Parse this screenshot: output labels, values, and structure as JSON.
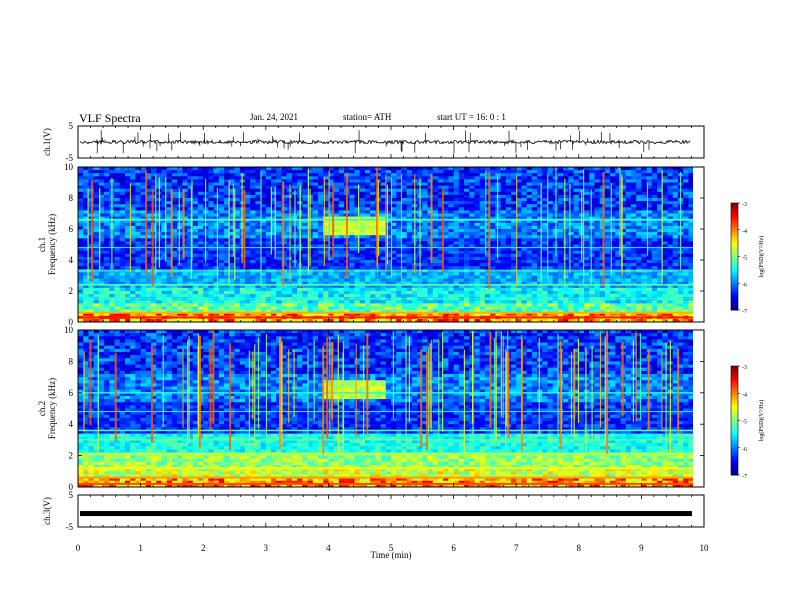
{
  "header": {
    "title": "VLF Spectra",
    "date": "Jan. 24, 2021",
    "station": "station= ATH",
    "start_time": "start  UT =   16: 0  : 1"
  },
  "chart_data": [
    {
      "type": "line",
      "name": "ch1-waveform",
      "ylabel": "ch.1(V)",
      "ylim": [
        -5,
        5
      ],
      "yticks": [
        "5",
        "-5"
      ],
      "xlim": [
        0,
        10
      ],
      "baseline_v": 0.0
    },
    {
      "type": "heatmap",
      "name": "ch1-spectrogram",
      "ylabel": "ch.1\nFrequency (kHz)",
      "ylim": [
        0,
        10
      ],
      "yticks": [
        "0",
        "2",
        "4",
        "6",
        "8",
        "10"
      ],
      "xlim": [
        0,
        10
      ],
      "colorbar": {
        "label": "log(PSD)(V²/Hz)",
        "range": [
          -7,
          -3
        ],
        "ticks": [
          "-3",
          "-4",
          "-5",
          "-6",
          "-7"
        ]
      }
    },
    {
      "type": "heatmap",
      "name": "ch2-spectrogram",
      "ylabel": "ch.2\nFrequency (kHz)",
      "ylim": [
        0,
        10
      ],
      "yticks": [
        "0",
        "2",
        "4",
        "6",
        "8",
        "10"
      ],
      "xlim": [
        0,
        10
      ],
      "colorbar": {
        "label": "log(PSD)(V²/Hz)",
        "range": [
          -7,
          -3
        ],
        "ticks": [
          "-3",
          "-4",
          "-5",
          "-6",
          "-7"
        ]
      }
    },
    {
      "type": "line",
      "name": "ch3-waveform",
      "ylabel": "ch.3(V)",
      "ylim": [
        -5,
        5
      ],
      "yticks": [
        "5",
        "-5"
      ],
      "xlim": [
        0,
        10
      ],
      "baseline_v": -0.8
    }
  ],
  "xaxis": {
    "label": "Time (min)",
    "ticks": [
      "0",
      "1",
      "2",
      "3",
      "4",
      "5",
      "6",
      "7",
      "8",
      "9",
      "10"
    ]
  }
}
